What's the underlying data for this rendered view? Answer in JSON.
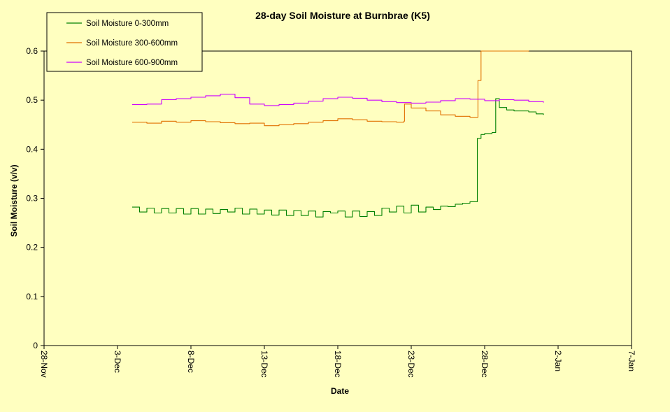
{
  "chart_data": {
    "type": "line",
    "title": "28-day Soil Moisture at Burnbrae (K5)",
    "xlabel": "Date",
    "ylabel": "Soil Moisture  (v/v)",
    "xlim": [
      "2021-11-28",
      "2022-01-07"
    ],
    "ylim": [
      0,
      0.6
    ],
    "x_ticks": [
      "28-Nov",
      "3-Dec",
      "8-Dec",
      "13-Dec",
      "18-Dec",
      "23-Dec",
      "28-Dec",
      "2-Jan",
      "7-Jan"
    ],
    "y_ticks": [
      "0",
      "0.1",
      "0.2",
      "0.3",
      "0.4",
      "0.5",
      "0.6"
    ],
    "grid": false,
    "legend_position": "top-left",
    "series": [
      {
        "name": "Soil Moisture 0-300mm",
        "color": "#008000",
        "x": [
          "2021-12-04 00:00",
          "2021-12-04 12:00",
          "2021-12-05 00:00",
          "2021-12-05 12:00",
          "2021-12-06 00:00",
          "2021-12-06 12:00",
          "2021-12-07 00:00",
          "2021-12-07 12:00",
          "2021-12-08 00:00",
          "2021-12-08 12:00",
          "2021-12-09 00:00",
          "2021-12-09 12:00",
          "2021-12-10 00:00",
          "2021-12-10 12:00",
          "2021-12-11 00:00",
          "2021-12-11 12:00",
          "2021-12-12 00:00",
          "2021-12-12 12:00",
          "2021-12-13 00:00",
          "2021-12-13 12:00",
          "2021-12-14 00:00",
          "2021-12-14 12:00",
          "2021-12-15 00:00",
          "2021-12-15 12:00",
          "2021-12-16 00:00",
          "2021-12-16 12:00",
          "2021-12-17 00:00",
          "2021-12-17 12:00",
          "2021-12-18 00:00",
          "2021-12-18 12:00",
          "2021-12-19 00:00",
          "2021-12-19 12:00",
          "2021-12-20 00:00",
          "2021-12-20 12:00",
          "2021-12-21 00:00",
          "2021-12-21 12:00",
          "2021-12-22 00:00",
          "2021-12-22 12:00",
          "2021-12-23 00:00",
          "2021-12-23 12:00",
          "2021-12-24 00:00",
          "2021-12-24 12:00",
          "2021-12-25 00:00",
          "2021-12-25 12:00",
          "2021-12-26 00:00",
          "2021-12-26 12:00",
          "2021-12-27 00:00",
          "2021-12-27 12:00",
          "2021-12-27 18:00",
          "2021-12-28 00:00",
          "2021-12-28 12:00",
          "2021-12-28 18:00",
          "2021-12-29 00:00",
          "2021-12-29 12:00",
          "2021-12-30 00:00",
          "2021-12-30 12:00",
          "2021-12-31 00:00",
          "2021-12-31 12:00",
          "2022-01-01 00:00"
        ],
        "values": [
          0.282,
          0.272,
          0.28,
          0.27,
          0.279,
          0.27,
          0.279,
          0.268,
          0.279,
          0.268,
          0.278,
          0.269,
          0.277,
          0.272,
          0.28,
          0.268,
          0.278,
          0.268,
          0.276,
          0.266,
          0.276,
          0.265,
          0.275,
          0.265,
          0.274,
          0.262,
          0.273,
          0.27,
          0.274,
          0.262,
          0.274,
          0.263,
          0.273,
          0.265,
          0.28,
          0.272,
          0.284,
          0.27,
          0.286,
          0.272,
          0.282,
          0.277,
          0.284,
          0.283,
          0.288,
          0.29,
          0.293,
          0.422,
          0.43,
          0.432,
          0.434,
          0.503,
          0.485,
          0.48,
          0.478,
          0.478,
          0.476,
          0.472,
          0.47
        ]
      },
      {
        "name": "Soil Moisture 300-600mm",
        "color": "#E07000",
        "x": [
          "2021-12-04 00:00",
          "2021-12-05 00:00",
          "2021-12-06 00:00",
          "2021-12-07 00:00",
          "2021-12-08 00:00",
          "2021-12-09 00:00",
          "2021-12-10 00:00",
          "2021-12-11 00:00",
          "2021-12-12 00:00",
          "2021-12-13 00:00",
          "2021-12-14 00:00",
          "2021-12-15 00:00",
          "2021-12-16 00:00",
          "2021-12-17 00:00",
          "2021-12-18 00:00",
          "2021-12-19 00:00",
          "2021-12-20 00:00",
          "2021-12-21 00:00",
          "2021-12-22 00:00",
          "2021-12-22 12:00",
          "2021-12-22 13:00",
          "2021-12-23 00:00",
          "2021-12-24 00:00",
          "2021-12-25 00:00",
          "2021-12-26 00:00",
          "2021-12-27 00:00",
          "2021-12-27 12:00",
          "2021-12-27 13:00",
          "2021-12-27 18:00",
          "2021-12-30 12:00",
          "2021-12-31 00:00"
        ],
        "values": [
          0.455,
          0.453,
          0.457,
          0.455,
          0.458,
          0.456,
          0.454,
          0.452,
          0.453,
          0.448,
          0.45,
          0.452,
          0.455,
          0.458,
          0.462,
          0.46,
          0.457,
          0.456,
          0.455,
          0.457,
          0.492,
          0.484,
          0.478,
          0.47,
          0.467,
          0.465,
          0.465,
          0.54,
          0.6,
          0.6,
          0.599
        ]
      },
      {
        "name": "Soil Moisture 600-900mm",
        "color": "#CC00FF",
        "x": [
          "2021-12-04 00:00",
          "2021-12-05 00:00",
          "2021-12-06 00:00",
          "2021-12-07 00:00",
          "2021-12-08 00:00",
          "2021-12-09 00:00",
          "2021-12-10 00:00",
          "2021-12-11 00:00",
          "2021-12-12 00:00",
          "2021-12-13 00:00",
          "2021-12-14 00:00",
          "2021-12-15 00:00",
          "2021-12-16 00:00",
          "2021-12-17 00:00",
          "2021-12-18 00:00",
          "2021-12-19 00:00",
          "2021-12-20 00:00",
          "2021-12-21 00:00",
          "2021-12-22 00:00",
          "2021-12-23 00:00",
          "2021-12-24 00:00",
          "2021-12-25 00:00",
          "2021-12-26 00:00",
          "2021-12-27 00:00",
          "2021-12-28 00:00",
          "2021-12-29 00:00",
          "2021-12-30 00:00",
          "2021-12-31 00:00",
          "2022-01-01 00:00"
        ],
        "values": [
          0.491,
          0.492,
          0.501,
          0.503,
          0.506,
          0.509,
          0.512,
          0.505,
          0.492,
          0.489,
          0.491,
          0.494,
          0.498,
          0.503,
          0.506,
          0.504,
          0.5,
          0.497,
          0.495,
          0.494,
          0.496,
          0.499,
          0.503,
          0.502,
          0.499,
          0.501,
          0.5,
          0.497,
          0.495
        ]
      }
    ]
  }
}
